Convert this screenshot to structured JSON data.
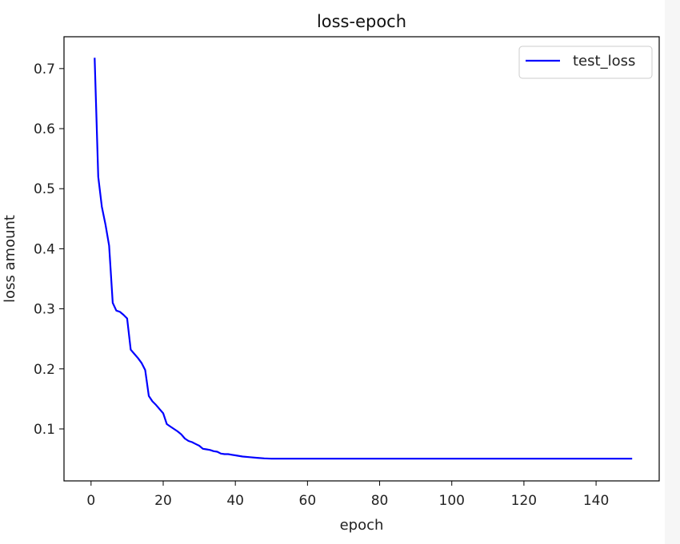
{
  "chart_data": {
    "type": "line",
    "title": "loss-epoch",
    "xlabel": "epoch",
    "ylabel": "loss amount",
    "xlim": [
      -7.5,
      157.5
    ],
    "ylim": [
      0.0135,
      0.753
    ],
    "xticks": [
      0,
      20,
      40,
      60,
      80,
      100,
      120,
      140
    ],
    "yticks": [
      0.1,
      0.2,
      0.3,
      0.4,
      0.5,
      0.6,
      0.7
    ],
    "grid": false,
    "legend_position": "top-right",
    "series": [
      {
        "name": "test_loss",
        "color": "#0000ff",
        "x": [
          1,
          2,
          3,
          4,
          5,
          6,
          7,
          8,
          9,
          10,
          11,
          12,
          13,
          14,
          15,
          16,
          17,
          18,
          19,
          20,
          21,
          22,
          23,
          24,
          25,
          26,
          27,
          28,
          29,
          30,
          31,
          32,
          33,
          34,
          35,
          36,
          37,
          38,
          39,
          40,
          42,
          44,
          46,
          48,
          50,
          55,
          60,
          70,
          80,
          90,
          100,
          110,
          120,
          130,
          140,
          150
        ],
        "y": [
          0.718,
          0.52,
          0.47,
          0.44,
          0.405,
          0.31,
          0.297,
          0.295,
          0.29,
          0.284,
          0.232,
          0.225,
          0.218,
          0.21,
          0.198,
          0.155,
          0.146,
          0.14,
          0.133,
          0.126,
          0.108,
          0.104,
          0.1,
          0.096,
          0.091,
          0.084,
          0.08,
          0.078,
          0.075,
          0.072,
          0.067,
          0.066,
          0.065,
          0.063,
          0.062,
          0.059,
          0.058,
          0.058,
          0.057,
          0.056,
          0.054,
          0.053,
          0.052,
          0.051,
          0.0505,
          0.0505,
          0.0505,
          0.0505,
          0.0505,
          0.0505,
          0.0505,
          0.0505,
          0.0505,
          0.0505,
          0.0505,
          0.0505
        ]
      }
    ]
  }
}
